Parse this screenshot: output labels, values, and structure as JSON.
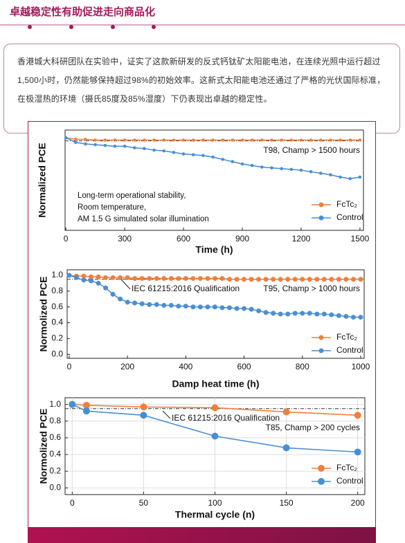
{
  "header": {
    "title": "卓越稳定性有助促进走向商品化"
  },
  "paragraph": "香港城大科研团队在实验中，证实了这款新研发的反式钙钛矿太阳能电池，在连续光照中运行超过1,500小时，仍然能够保持超过98%的初始效率。这新式太阳能电池还通过了严格的光伏国际标准，在极湿热的环境（摄氏85度及85%湿度）下仍表现出卓越的稳定性。",
  "chart_data": [
    {
      "type": "line",
      "xlabel": "Time (h)",
      "ylabel": "Normalized PCE",
      "xlim": [
        -4,
        1518
      ],
      "xticks": [
        0,
        300,
        600,
        900,
        1200,
        1500
      ],
      "ylim": [
        0.4,
        1.05
      ],
      "reference_line": 0.98,
      "grid": false,
      "legend": "lower right",
      "annotations": [
        "T98, Champ > 1500 hours"
      ],
      "note": [
        "Long-term operational stability,",
        "Room temperature,",
        "AM 1.5 G simulated solar illumination"
      ],
      "x": [
        0,
        50,
        100,
        150,
        200,
        250,
        300,
        350,
        400,
        450,
        500,
        550,
        600,
        650,
        700,
        750,
        800,
        850,
        900,
        950,
        1000,
        1050,
        1100,
        1150,
        1200,
        1250,
        1300,
        1350,
        1400,
        1450,
        1500
      ],
      "series": [
        {
          "name": "FcTc₂",
          "color": "#f07f3c",
          "values": [
            1.0,
            0.99,
            0.99,
            0.985,
            0.985,
            0.985,
            0.985,
            0.985,
            0.985,
            0.985,
            0.985,
            0.985,
            0.985,
            0.985,
            0.985,
            0.985,
            0.985,
            0.985,
            0.985,
            0.985,
            0.985,
            0.985,
            0.985,
            0.985,
            0.985,
            0.985,
            0.985,
            0.985,
            0.985,
            0.985,
            0.985
          ]
        },
        {
          "name": "Control",
          "color": "#4a8fd4",
          "values": [
            1.0,
            0.97,
            0.96,
            0.955,
            0.95,
            0.945,
            0.945,
            0.935,
            0.93,
            0.92,
            0.915,
            0.905,
            0.895,
            0.89,
            0.885,
            0.875,
            0.86,
            0.845,
            0.83,
            0.82,
            0.81,
            0.805,
            0.8,
            0.795,
            0.79,
            0.78,
            0.77,
            0.76,
            0.745,
            0.735,
            0.745
          ]
        }
      ]
    },
    {
      "type": "line",
      "xlabel": "Damp heat time (h)",
      "ylabel": "Normolized PCE",
      "xlim": [
        -7,
        1012
      ],
      "xticks": [
        0,
        200,
        400,
        600,
        800,
        1000
      ],
      "ylim": [
        -0.05,
        1.07
      ],
      "yticks": [
        {
          "value": 0,
          "label": "0.0"
        },
        0.2,
        0.4,
        0.6,
        0.8,
        {
          "value": 1,
          "label": "1.0"
        }
      ],
      "reference_line": 0.95,
      "grid": false,
      "legend": "lower right",
      "annotations": [
        "IEC 61215:2016 Qualification",
        "T95, Champ > 1000 hours"
      ],
      "x": [
        0,
        25,
        50,
        75,
        100,
        125,
        150,
        175,
        200,
        225,
        250,
        275,
        300,
        325,
        350,
        375,
        400,
        425,
        450,
        475,
        500,
        525,
        550,
        575,
        600,
        625,
        650,
        675,
        700,
        725,
        750,
        775,
        800,
        825,
        850,
        875,
        900,
        925,
        950,
        975,
        1000
      ],
      "series": [
        {
          "name": "FcTc₂",
          "color": "#f07f3c",
          "values": [
            1.0,
            0.99,
            0.99,
            0.98,
            0.98,
            0.97,
            0.97,
            0.97,
            0.97,
            0.96,
            0.96,
            0.96,
            0.96,
            0.96,
            0.96,
            0.96,
            0.96,
            0.96,
            0.96,
            0.96,
            0.96,
            0.96,
            0.95,
            0.95,
            0.95,
            0.95,
            0.95,
            0.95,
            0.95,
            0.95,
            0.95,
            0.95,
            0.95,
            0.95,
            0.95,
            0.95,
            0.95,
            0.95,
            0.95,
            0.95,
            0.95
          ]
        },
        {
          "name": "Control",
          "color": "#4a8fd4",
          "values": [
            1.0,
            0.97,
            0.94,
            0.93,
            0.9,
            0.84,
            0.76,
            0.7,
            0.66,
            0.65,
            0.64,
            0.63,
            0.63,
            0.62,
            0.62,
            0.61,
            0.61,
            0.6,
            0.6,
            0.6,
            0.6,
            0.59,
            0.59,
            0.58,
            0.58,
            0.57,
            0.55,
            0.53,
            0.52,
            0.51,
            0.51,
            0.52,
            0.52,
            0.52,
            0.51,
            0.51,
            0.5,
            0.49,
            0.48,
            0.47,
            0.47
          ]
        }
      ]
    },
    {
      "type": "line",
      "xlabel": "Thermal cycle (n)",
      "ylabel": "Normolized PCE",
      "xlim": [
        -5,
        205
      ],
      "xticks": [
        0,
        50,
        100,
        150,
        200
      ],
      "ylim": [
        -0.08,
        1.08
      ],
      "yticks": [
        {
          "value": 0,
          "label": "0.0"
        },
        0.2,
        0.4,
        0.6,
        0.8,
        {
          "value": 1,
          "label": "1.0"
        }
      ],
      "reference_line": 0.95,
      "grid": true,
      "legend": "lower right",
      "annotations": [
        "IEC 61215:2016 Qualification",
        "T85, Champ > 200 cycles"
      ],
      "x": [
        0,
        10,
        50,
        100,
        150,
        200
      ],
      "series": [
        {
          "name": "FcTc₂",
          "color": "#f07f3c",
          "values": [
            1.0,
            0.99,
            0.97,
            0.96,
            0.91,
            0.87
          ]
        },
        {
          "name": "Control",
          "color": "#4a8fd4",
          "values": [
            1.0,
            0.92,
            0.87,
            0.62,
            0.48,
            0.43
          ]
        }
      ]
    }
  ]
}
